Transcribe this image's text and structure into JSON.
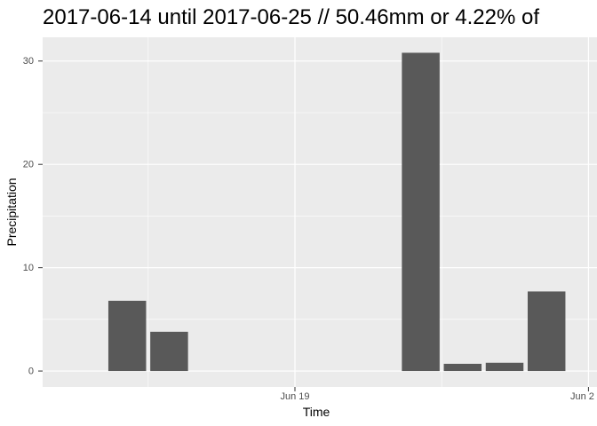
{
  "chart_data": {
    "type": "bar",
    "title": "2017-06-14 until 2017-06-25 // 50.46mm or 4.22% of",
    "xlabel": "Time",
    "ylabel": "Precipitation",
    "x_tick_labels": [
      "Jun 19",
      "Jun 2"
    ],
    "y_tick_labels": [
      "0",
      "10",
      "20",
      "30"
    ],
    "y_ticks": [
      0,
      10,
      20,
      30
    ],
    "ylim": [
      -1.54,
      32.3
    ],
    "x_dates": [
      "2017-06-14",
      "2017-06-15",
      "2017-06-16",
      "2017-06-17",
      "2017-06-18",
      "2017-06-19",
      "2017-06-20",
      "2017-06-21",
      "2017-06-22",
      "2017-06-23",
      "2017-06-24",
      "2017-06-25"
    ],
    "values": [
      0,
      6.8,
      3.8,
      0,
      0,
      0,
      0,
      0,
      30.8,
      0.7,
      0.8,
      7.7
    ],
    "bar_color": "#595959",
    "panel_color": "#ebebeb",
    "grid": true
  }
}
